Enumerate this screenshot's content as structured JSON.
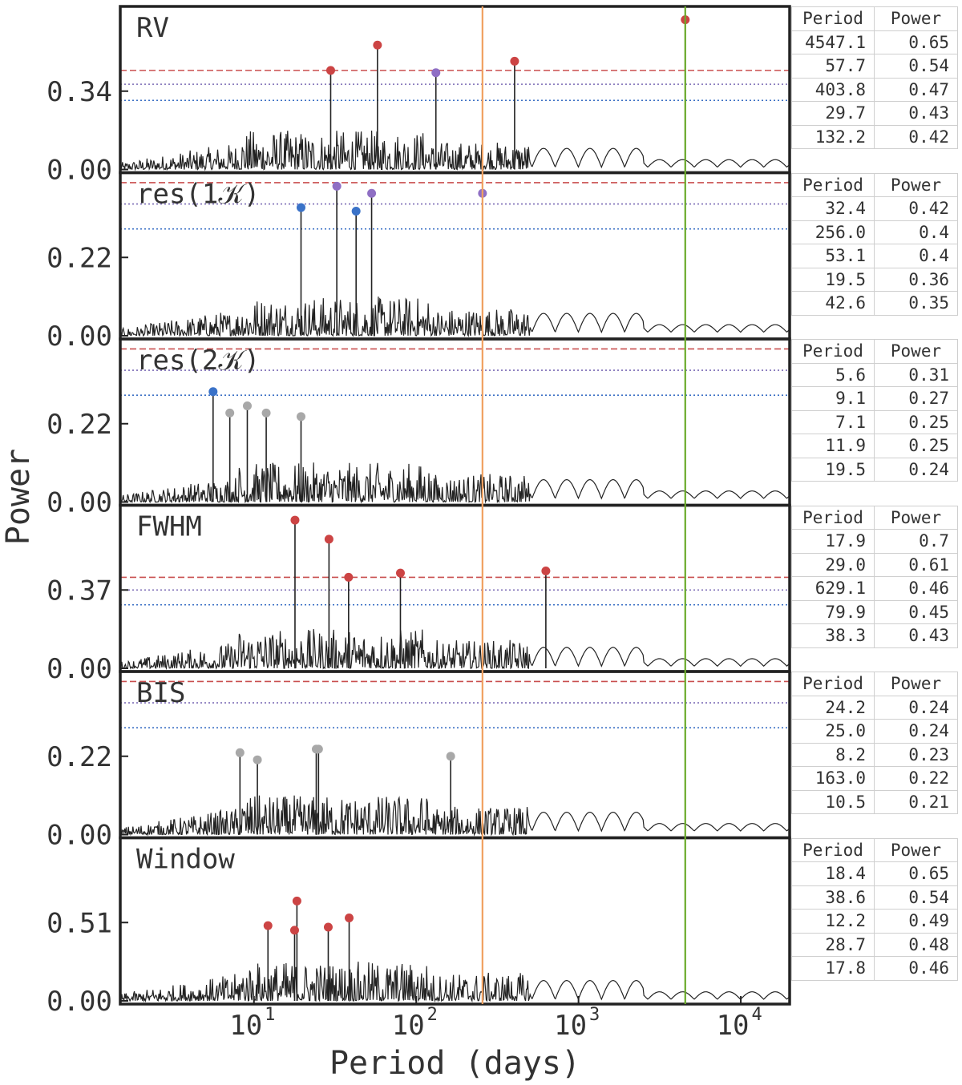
{
  "chart_data": {
    "type": "line",
    "xlabel": "Period (days)",
    "ylabel": "Power",
    "xscale": "log",
    "xlim": [
      1.5,
      20000
    ],
    "xticks": [
      "10",
      "10",
      "10",
      "10"
    ],
    "xtick_exponents": [
      "1",
      "2",
      "3",
      "4"
    ],
    "xtick_values": [
      10,
      100,
      1000,
      10000
    ],
    "vertical_lines": [
      {
        "x": 256,
        "color": "#f0a060"
      },
      {
        "x": 4547,
        "color": "#6aaa2a"
      }
    ],
    "threshold_colors": {
      "fap_high": "#c94f4f",
      "fap_mid": "#7b6bb5",
      "fap_low": "#3a6fc4"
    },
    "marker_colors": {
      "red": "#cc4444",
      "purple": "#8f6fc4",
      "blue": "#3a72c8",
      "gray": "#a8a8a8"
    },
    "table_headers": [
      "Period",
      "Power"
    ],
    "panels": [
      {
        "label": "RV",
        "ytick_labels": [
          "0.00",
          "0.34"
        ],
        "ytick_values": [
          0,
          0.34
        ],
        "ymax": 0.68,
        "thresholds": [
          0.43,
          0.37,
          0.3
        ],
        "peaks": [
          [
            4547.1,
            0.65
          ],
          [
            57.7,
            0.54
          ],
          [
            403.8,
            0.47
          ],
          [
            29.7,
            0.43
          ],
          [
            132.2,
            0.42
          ]
        ],
        "table": [
          [
            "4547.1",
            "0.65"
          ],
          [
            "57.7",
            "0.54"
          ],
          [
            "403.8",
            "0.47"
          ],
          [
            "29.7",
            "0.43"
          ],
          [
            "132.2",
            "0.42"
          ]
        ]
      },
      {
        "label": "res(1",
        "label_symbol": "𝒦",
        "label_end": ")",
        "ytick_labels": [
          "0.00",
          "0.22"
        ],
        "ytick_values": [
          0,
          0.22
        ],
        "ymax": 0.44,
        "thresholds": [
          0.43,
          0.37,
          0.3
        ],
        "peaks": [
          [
            32.4,
            0.42
          ],
          [
            256.0,
            0.4
          ],
          [
            53.1,
            0.4
          ],
          [
            19.5,
            0.36
          ],
          [
            42.6,
            0.35
          ]
        ],
        "table": [
          [
            "32.4",
            "0.42"
          ],
          [
            "256.0",
            "0.4"
          ],
          [
            "53.1",
            "0.4"
          ],
          [
            "19.5",
            "0.36"
          ],
          [
            "42.6",
            "0.35"
          ]
        ]
      },
      {
        "label": "res(2",
        "label_symbol": "𝒦",
        "label_end": ")",
        "ytick_labels": [
          "0.00",
          "0.22"
        ],
        "ytick_values": [
          0,
          0.22
        ],
        "ymax": 0.44,
        "thresholds": [
          0.43,
          0.37,
          0.3
        ],
        "peaks": [
          [
            5.6,
            0.31
          ],
          [
            9.1,
            0.27
          ],
          [
            7.1,
            0.25
          ],
          [
            11.9,
            0.25
          ],
          [
            19.5,
            0.24
          ]
        ],
        "table": [
          [
            "5.6",
            "0.31"
          ],
          [
            "9.1",
            "0.27"
          ],
          [
            "7.1",
            "0.25"
          ],
          [
            "11.9",
            "0.25"
          ],
          [
            "19.5",
            "0.24"
          ]
        ]
      },
      {
        "label": "FWHM",
        "ytick_labels": [
          "0.00",
          "0.37"
        ],
        "ytick_values": [
          0,
          0.37
        ],
        "ymax": 0.74,
        "thresholds": [
          0.43,
          0.37,
          0.3
        ],
        "peaks": [
          [
            17.9,
            0.7
          ],
          [
            29.0,
            0.61
          ],
          [
            629.1,
            0.46
          ],
          [
            79.9,
            0.45
          ],
          [
            38.3,
            0.43
          ]
        ],
        "table": [
          [
            "17.9",
            "0.7"
          ],
          [
            "29.0",
            "0.61"
          ],
          [
            "629.1",
            "0.46"
          ],
          [
            "79.9",
            "0.45"
          ],
          [
            "38.3",
            "0.43"
          ]
        ]
      },
      {
        "label": "BIS",
        "ytick_labels": [
          "0.00",
          "0.22"
        ],
        "ytick_values": [
          0,
          0.22
        ],
        "ymax": 0.44,
        "thresholds": [
          0.43,
          0.37,
          0.3
        ],
        "peaks": [
          [
            24.2,
            0.24
          ],
          [
            25.0,
            0.24
          ],
          [
            8.2,
            0.23
          ],
          [
            163.0,
            0.22
          ],
          [
            10.5,
            0.21
          ]
        ],
        "table": [
          [
            "24.2",
            "0.24"
          ],
          [
            "25.0",
            "0.24"
          ],
          [
            "8.2",
            "0.23"
          ],
          [
            "163.0",
            "0.22"
          ],
          [
            "10.5",
            "0.21"
          ]
        ]
      },
      {
        "label": "Window",
        "ytick_labels": [
          "0.00",
          "0.51"
        ],
        "ytick_values": [
          0,
          0.51
        ],
        "ymax": 1.02,
        "thresholds": [],
        "peaks": [
          [
            18.4,
            0.65
          ],
          [
            38.6,
            0.54
          ],
          [
            12.2,
            0.49
          ],
          [
            28.7,
            0.48
          ],
          [
            17.8,
            0.46
          ]
        ],
        "table": [
          [
            "18.4",
            "0.65"
          ],
          [
            "38.6",
            "0.54"
          ],
          [
            "12.2",
            "0.49"
          ],
          [
            "28.7",
            "0.48"
          ],
          [
            "17.8",
            "0.46"
          ]
        ]
      }
    ]
  }
}
